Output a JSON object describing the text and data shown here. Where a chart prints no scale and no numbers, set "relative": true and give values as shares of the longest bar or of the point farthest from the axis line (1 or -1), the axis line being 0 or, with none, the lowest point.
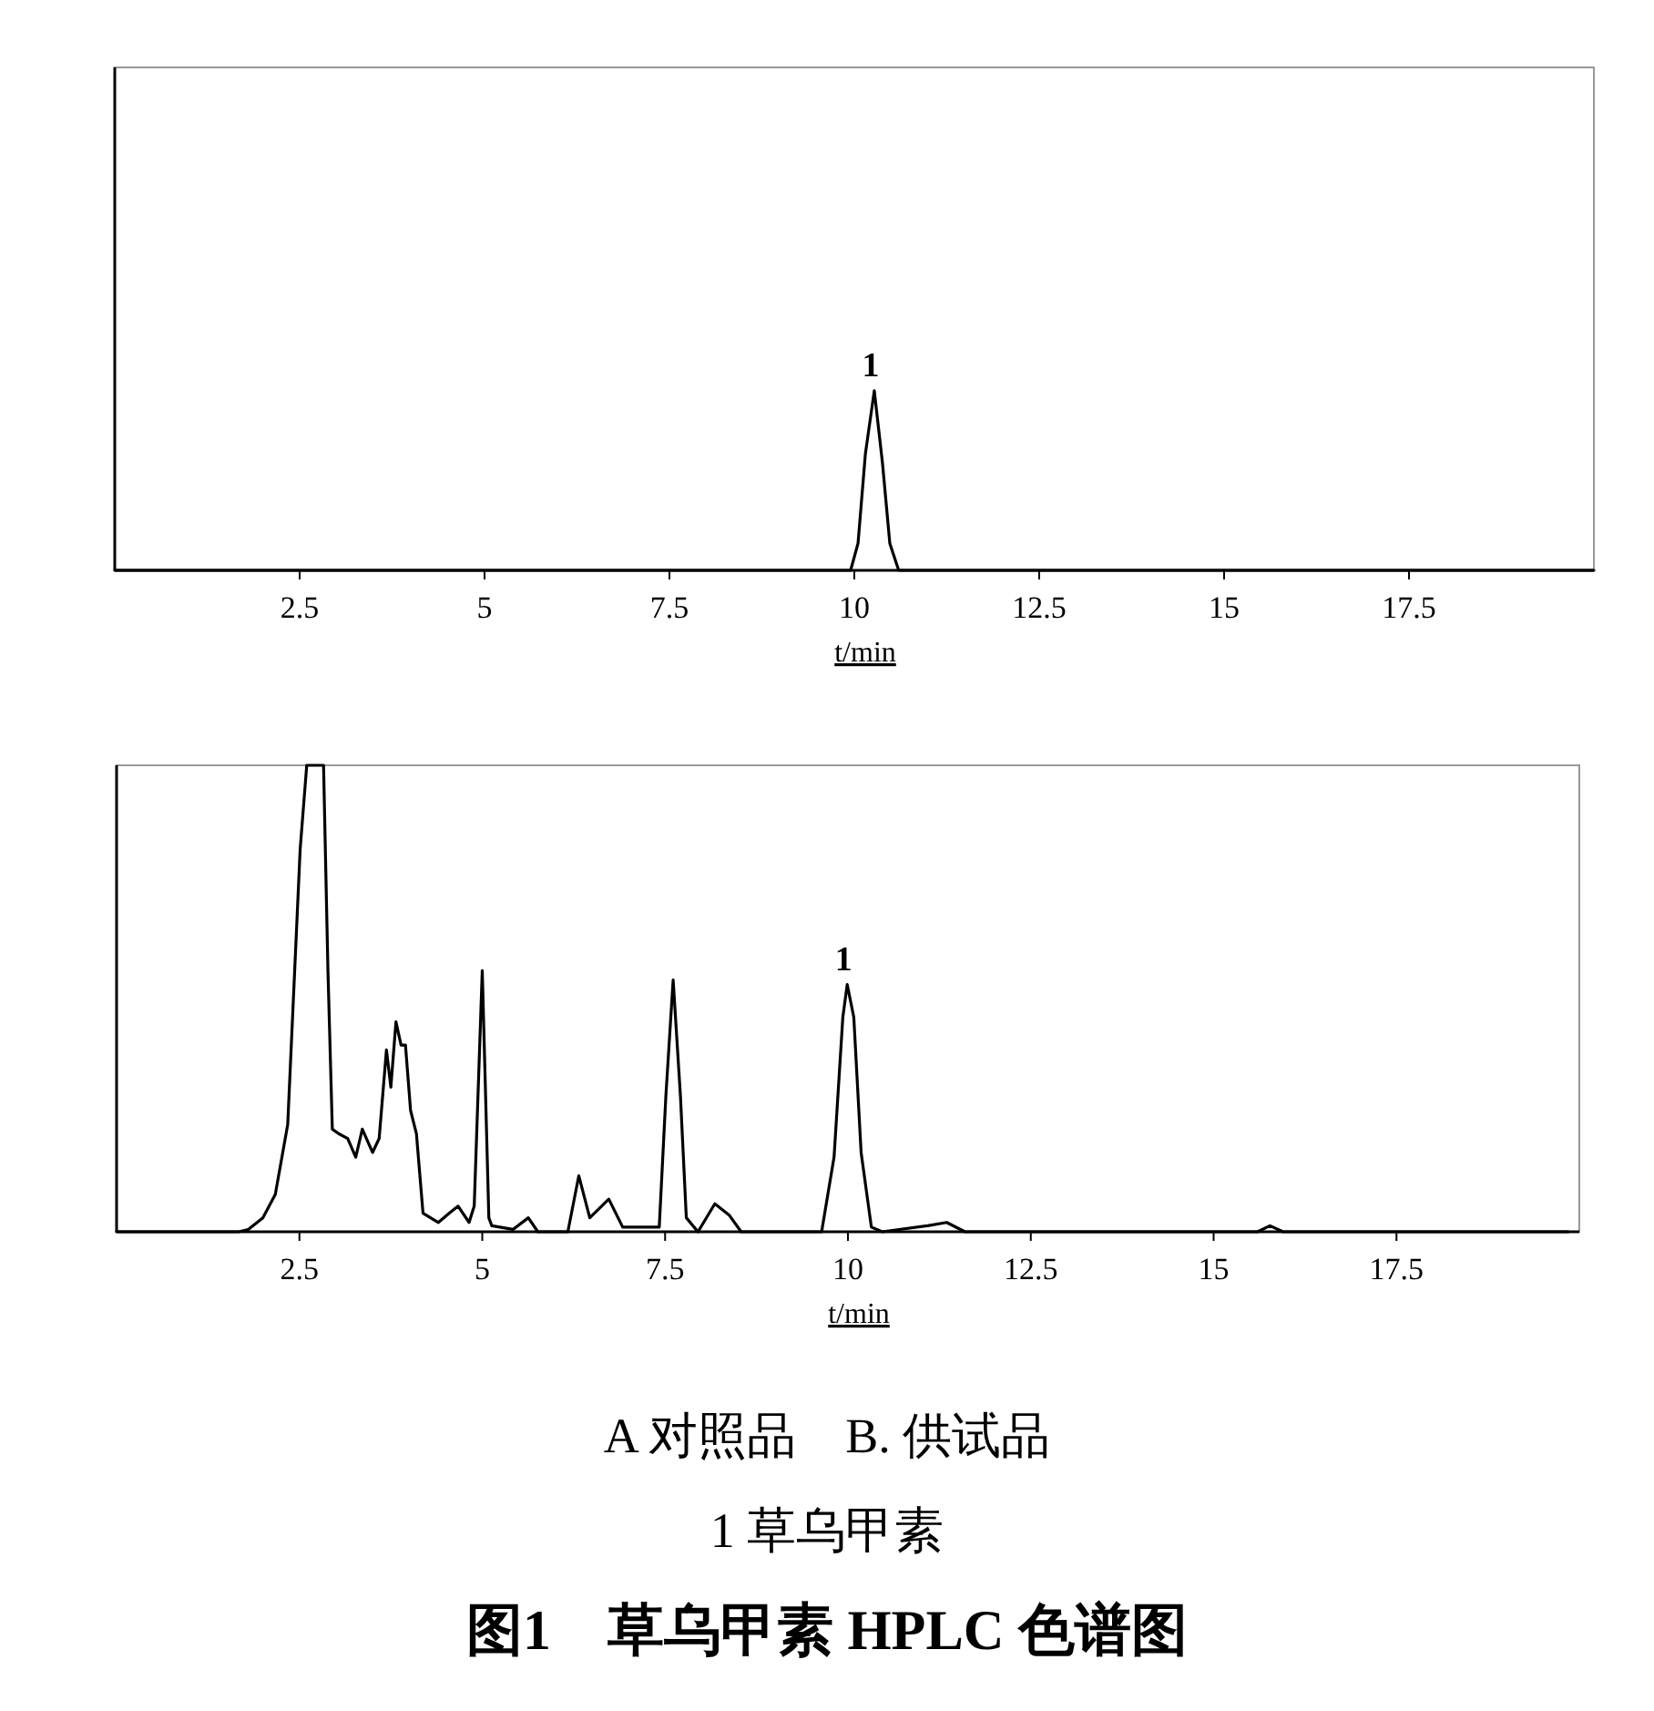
{
  "chart_data": [
    {
      "type": "line",
      "relative": true,
      "xlabel": "t/min",
      "xlim": [
        0,
        20
      ],
      "xticks": [
        2.5,
        5,
        7.5,
        10,
        12.5,
        15,
        17.5
      ],
      "series": [
        {
          "color": "#000000",
          "x": [
            0,
            9.95,
            10.05,
            10.15,
            10.27,
            10.38,
            10.48,
            10.6,
            20
          ],
          "values": [
            0,
            0,
            0.15,
            0.65,
            1,
            0.6,
            0.15,
            0,
            0
          ]
        }
      ],
      "annotations": [
        {
          "text": "1",
          "x": 10.27,
          "y": 1
        }
      ]
    },
    {
      "type": "line",
      "relative": true,
      "xlabel": "t/min",
      "xlim": [
        0,
        20
      ],
      "xticks": [
        2.5,
        5,
        7.5,
        10,
        12.5,
        15,
        17.5
      ],
      "series": [
        {
          "color": "#000000",
          "x": [
            0,
            1.67,
            1.8,
            2.0,
            2.17,
            2.34,
            2.51,
            2.6,
            2.83,
            2.89,
            2.95,
            3.04,
            3.16,
            3.27,
            3.36,
            3.5,
            3.59,
            3.69,
            3.75,
            3.82,
            3.89,
            3.95,
            4.02,
            4.1,
            4.19,
            4.4,
            4.55,
            4.67,
            4.82,
            4.89,
            5.0,
            5.09,
            5.13,
            5.42,
            5.63,
            5.76,
            6.17,
            6.32,
            6.47,
            6.73,
            6.92,
            7.42,
            7.51,
            7.61,
            7.71,
            7.79,
            7.95,
            8.18,
            8.38,
            8.54,
            9.64,
            9.81,
            9.93,
            9.99,
            10.08,
            10.18,
            10.32,
            10.47,
            11.09,
            11.35,
            11.6,
            15.6,
            15.77,
            15.95,
            19.85
          ],
          "values": [
            0,
            0,
            0.005,
            0.03,
            0.08,
            0.23,
            0.82,
            1,
            1,
            0.56,
            0.22,
            0.21,
            0.2,
            0.16,
            0.22,
            0.17,
            0.2,
            0.39,
            0.31,
            0.45,
            0.4,
            0.4,
            0.26,
            0.21,
            0.04,
            0.02,
            0.04,
            0.055,
            0.02,
            0.055,
            0.56,
            0.03,
            0.013,
            0.005,
            0.03,
            0,
            0,
            0.12,
            0.03,
            0.07,
            0.01,
            0.01,
            0.29,
            0.54,
            0.29,
            0.03,
            0,
            0.06,
            0.035,
            0,
            0,
            0.16,
            0.46,
            0.53,
            0.46,
            0.17,
            0.01,
            0,
            0.013,
            0.02,
            0,
            0,
            0.013,
            0,
            0
          ]
        }
      ],
      "annotations": [
        {
          "text": "1",
          "x": 9.99,
          "y": 0.53
        },
        "A 对照品　B. 供试品",
        "1 草乌甲素",
        "图1　草乌甲素 HPLC 色谱图"
      ]
    }
  ]
}
